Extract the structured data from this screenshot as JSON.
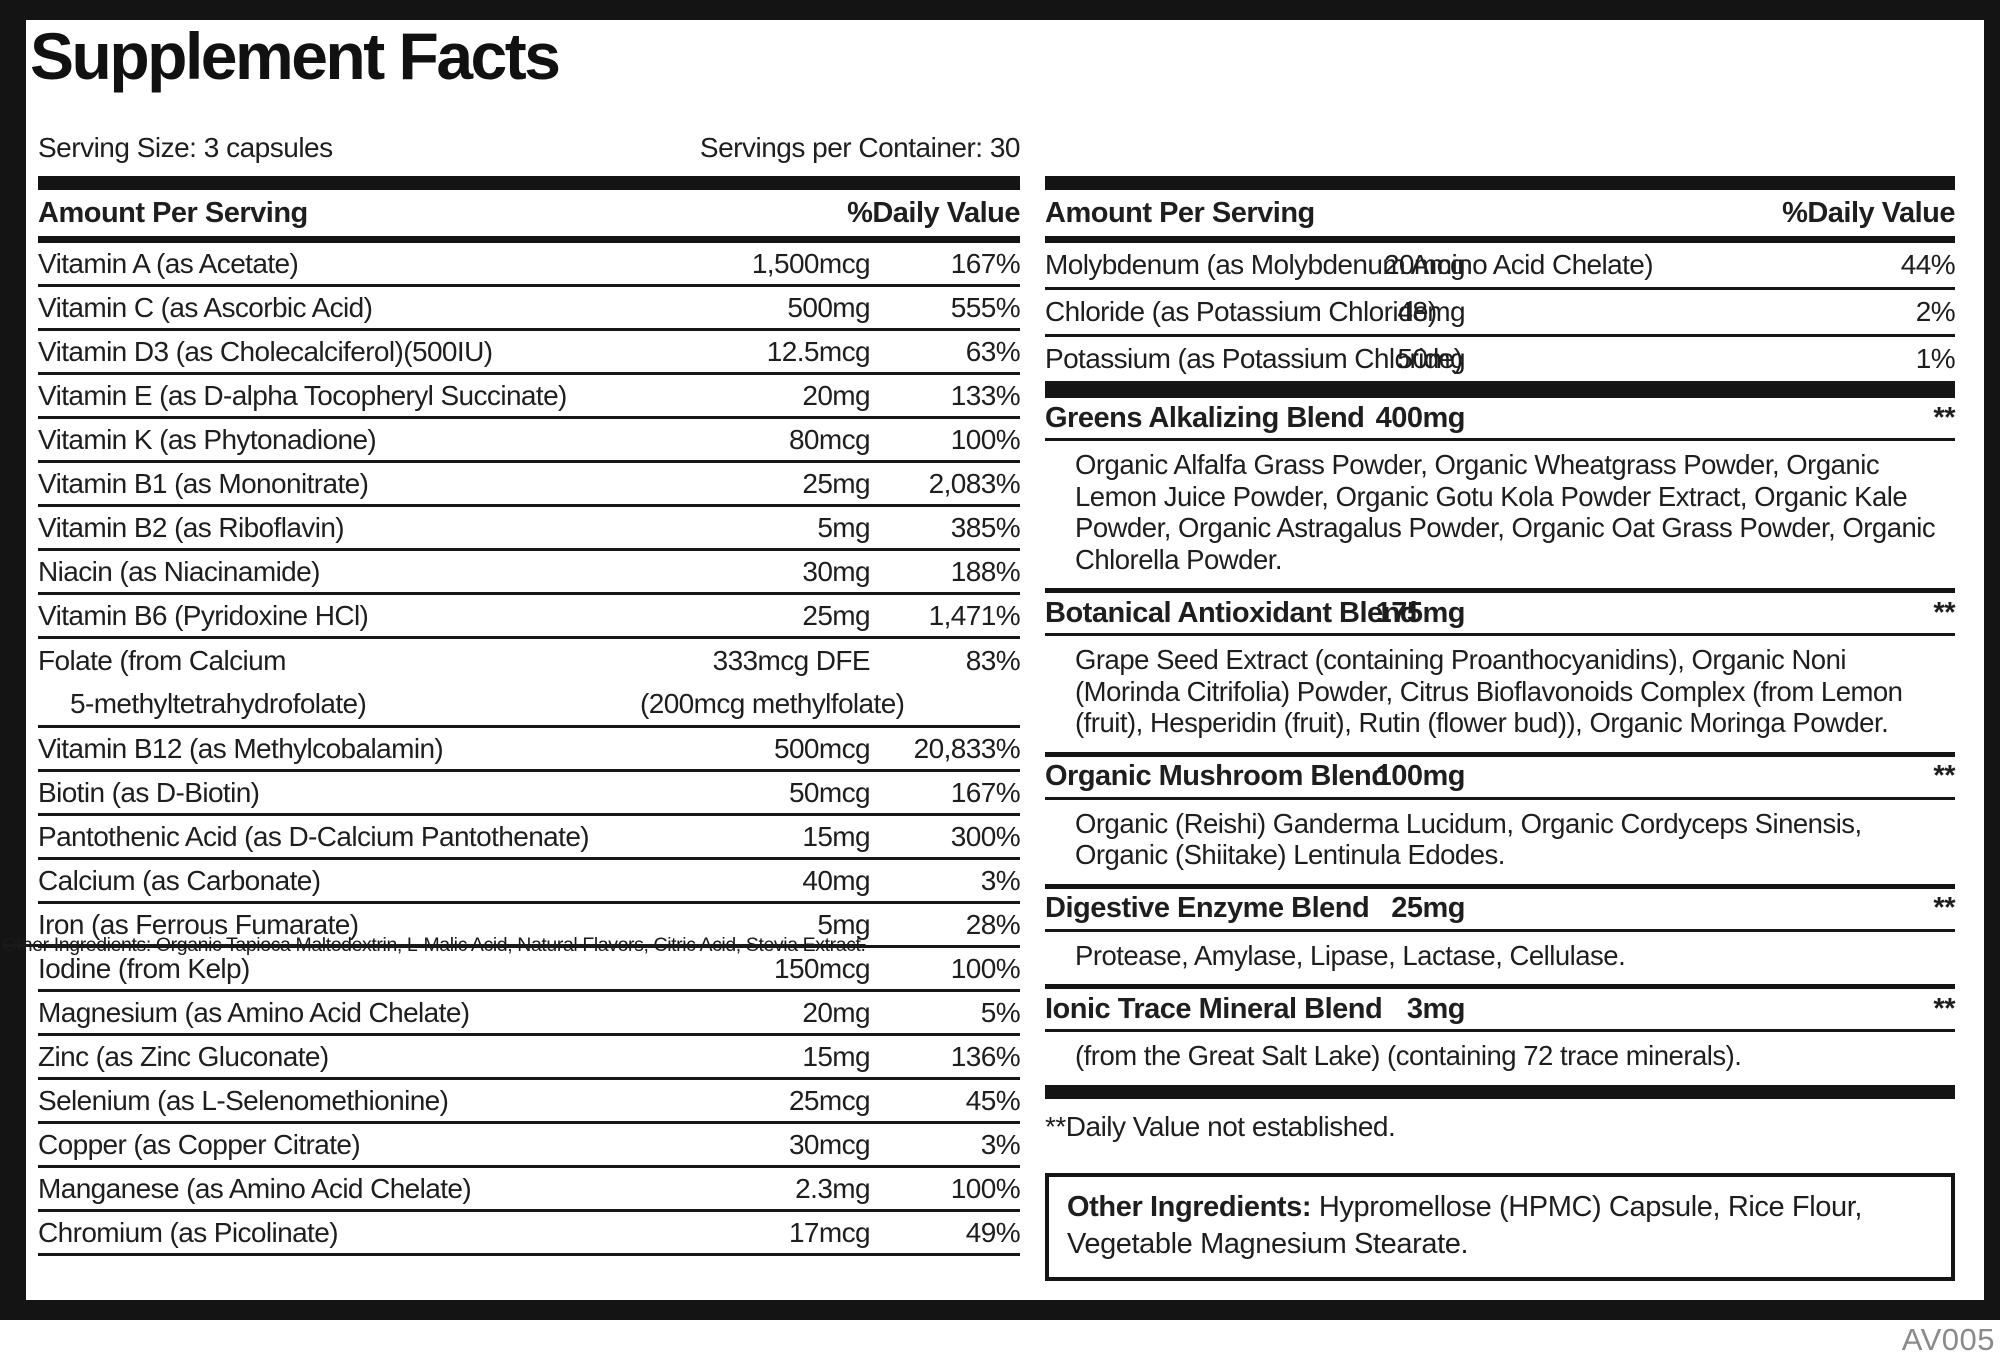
{
  "title": "Supplement Facts",
  "serving": {
    "size": "Serving Size: 3 capsules",
    "per_container": "Servings per Container: 30"
  },
  "left_table": {
    "header": {
      "amount": "Amount Per Serving",
      "dv": "%Daily Value"
    },
    "rows": [
      {
        "name": "Vitamin A (as Acetate)",
        "amount": "1,500mcg",
        "dv": "167%"
      },
      {
        "name": "Vitamin C (as Ascorbic Acid)",
        "amount": "500mg",
        "dv": "555%"
      },
      {
        "name": "Vitamin D3 (as Cholecalciferol)(500IU)",
        "amount": "12.5mcg",
        "dv": "63%"
      },
      {
        "name": "Vitamin E (as D-alpha Tocopheryl Succinate)",
        "amount": "20mg",
        "dv": "133%"
      },
      {
        "name": "Vitamin K (as Phytonadione)",
        "amount": "80mcg",
        "dv": "100%"
      },
      {
        "name": "Vitamin B1 (as Mononitrate)",
        "amount": "25mg",
        "dv": "2,083%"
      },
      {
        "name": "Vitamin B2 (as Riboflavin)",
        "amount": "5mg",
        "dv": "385%"
      },
      {
        "name": "Niacin (as Niacinamide)",
        "amount": "30mg",
        "dv": "188%"
      },
      {
        "name": "Vitamin B6 (Pyridoxine HCl)",
        "amount": "25mg",
        "dv": "1,471%"
      },
      {
        "name": "Folate (from Calcium",
        "name2": "5-methyltetrahydrofolate)",
        "amount": "333mcg DFE",
        "amount2": "(200mcg methylfolate)",
        "dv": "83%"
      },
      {
        "name": "Vitamin B12 (as Methylcobalamin)",
        "amount": "500mcg",
        "dv": "20,833%"
      },
      {
        "name": "Biotin (as D-Biotin)",
        "amount": "50mcg",
        "dv": "167%"
      },
      {
        "name": "Pantothenic Acid (as D-Calcium Pantothenate)",
        "amount": "15mg",
        "dv": "300%"
      },
      {
        "name": "Calcium (as Carbonate)",
        "amount": "40mg",
        "dv": "3%"
      },
      {
        "name": "Iron (as Ferrous Fumarate)",
        "amount": "5mg",
        "dv": "28%"
      },
      {
        "name": "Iodine (from Kelp)",
        "amount": "150mcg",
        "dv": "100%"
      },
      {
        "name": "Magnesium (as Amino Acid Chelate)",
        "amount": "20mg",
        "dv": "5%"
      },
      {
        "name": "Zinc (as Zinc Gluconate)",
        "amount": "15mg",
        "dv": "136%"
      },
      {
        "name": "Selenium (as L-Selenomethionine)",
        "amount": "25mcg",
        "dv": "45%"
      },
      {
        "name": "Copper (as Copper Citrate)",
        "amount": "30mcg",
        "dv": "3%"
      },
      {
        "name": "Manganese (as Amino Acid Chelate)",
        "amount": "2.3mg",
        "dv": "100%"
      },
      {
        "name": "Chromium (as Picolinate)",
        "amount": "17mcg",
        "dv": "49%"
      }
    ]
  },
  "artifact_text": "Other Ingredients: Organic Tapioca Maltodextrin, L-Malic Acid, Natural Flavors, Citric Acid, Stevia Extract.",
  "right_table": {
    "header": {
      "amount": "Amount Per Serving",
      "dv": "%Daily Value"
    },
    "rows": [
      {
        "name": "Molybdenum (as Molybdenum Amino Acid Chelate)",
        "amount": "20mcg",
        "dv": "44%"
      },
      {
        "name": "Chloride (as Potassium Chloride)",
        "amount": "48mg",
        "dv": "2%"
      },
      {
        "name": "Potassium (as Potassium Chloride)",
        "amount": "50mg",
        "dv": "1%"
      }
    ],
    "blends": [
      {
        "name": "Greens Alkalizing Blend",
        "amount": "400mg",
        "dv": "**",
        "desc": "Organic Alfalfa Grass Powder, Organic Wheatgrass Powder, Organic Lemon Juice Powder, Organic Gotu Kola Powder Extract, Organic Kale Powder, Organic Astragalus Powder, Organic Oat Grass Powder, Organic Chlorella Powder."
      },
      {
        "name": "Botanical Antioxidant Blend",
        "amount": "175mg",
        "dv": "**",
        "desc": "Grape Seed Extract (containing Proanthocyanidins), Organic Noni (Morinda Citrifolia) Powder, Citrus Bioflavonoids Complex (from Lemon (fruit), Hesperidin (fruit), Rutin (flower bud)), Organic Moringa Powder."
      },
      {
        "name": "Organic Mushroom Blend",
        "amount": "100mg",
        "dv": "**",
        "desc": "Organic (Reishi) Ganderma Lucidum, Organic Cordyceps Sinensis, Organic (Shiitake) Lentinula Edodes."
      },
      {
        "name": "Digestive Enzyme Blend",
        "amount": "25mg",
        "dv": "**",
        "desc": "Protease, Amylase, Lipase, Lactase, Cellulase."
      },
      {
        "name": "Ionic Trace Mineral Blend",
        "amount": "3mg",
        "dv": "**",
        "desc": "(from the Great Salt Lake) (containing 72 trace minerals)."
      }
    ],
    "footnote": "**Daily Value not established.",
    "other_ingredients": {
      "label": "Other Ingredients:",
      "text": " Hypromellose (HPMC) Capsule, Rice Flour, Vegetable Magnesium Stearate."
    }
  },
  "footer_code": "AV005",
  "colors": {
    "ink": "#141414",
    "footer_gray": "#8a8a8a"
  }
}
